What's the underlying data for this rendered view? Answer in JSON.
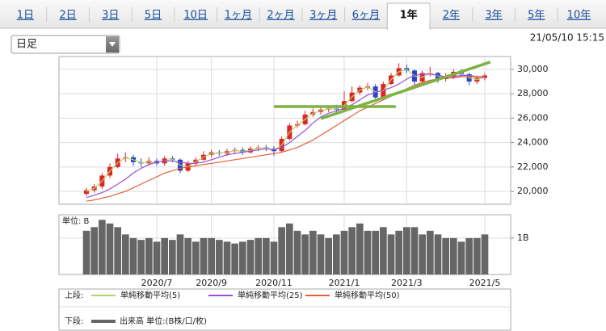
{
  "tabs": [
    {
      "label": "1日"
    },
    {
      "label": "2日"
    },
    {
      "label": "3日"
    },
    {
      "label": "5日"
    },
    {
      "label": "10日"
    },
    {
      "label": "1ヶ月"
    },
    {
      "label": "2ヶ月"
    },
    {
      "label": "3ヶ月"
    },
    {
      "label": "6ヶ月"
    },
    {
      "label": "1年",
      "active": true
    },
    {
      "label": "2年"
    },
    {
      "label": "3年"
    },
    {
      "label": "5年"
    },
    {
      "label": "10年"
    }
  ],
  "dropdown": "日足",
  "timestamp": "21/05/10 15:15",
  "chart_data": [
    {
      "type": "candlestick",
      "categories": [
        null,
        null,
        null,
        null,
        null,
        null,
        null,
        null,
        null,
        "2020/7",
        null,
        null,
        null,
        null,
        null,
        null,
        "2020/9",
        null,
        null,
        null,
        null,
        null,
        null,
        null,
        "2020/11",
        null,
        null,
        null,
        null,
        null,
        null,
        null,
        null,
        "2021/1",
        null,
        null,
        null,
        null,
        null,
        null,
        null,
        "2021/3",
        null,
        null,
        null,
        null,
        null,
        null,
        null,
        null,
        null,
        "2021/5"
      ],
      "open": [
        19800,
        20100,
        20400,
        21300,
        22000,
        22700,
        22800,
        22400,
        22300,
        22500,
        22300,
        22700,
        22600,
        21700,
        22300,
        22600,
        23000,
        23200,
        23100,
        23300,
        23400,
        23200,
        23500,
        23600,
        23500,
        23300,
        24300,
        25400,
        25500,
        26300,
        26500,
        26700,
        26800,
        26700,
        27400,
        28100,
        28500,
        28600,
        27700,
        28800,
        29500,
        30100,
        29900,
        29000,
        29700,
        29700,
        29200,
        29400,
        29800,
        29600,
        29000,
        29300
      ],
      "high": [
        20300,
        20600,
        21500,
        22300,
        23100,
        23200,
        23000,
        22700,
        22800,
        22700,
        22900,
        22900,
        22700,
        22500,
        22800,
        23300,
        23400,
        23400,
        23500,
        23600,
        23600,
        23700,
        23800,
        23800,
        23700,
        24500,
        25600,
        25800,
        26600,
        26800,
        26900,
        27000,
        27100,
        28200,
        28600,
        28700,
        28900,
        28800,
        29000,
        29700,
        30500,
        30400,
        30000,
        29900,
        30200,
        29800,
        29700,
        30000,
        30000,
        29700,
        29500,
        29700
      ],
      "low": [
        19600,
        19900,
        20200,
        21100,
        21900,
        22400,
        22100,
        22000,
        22100,
        22100,
        22100,
        22400,
        21500,
        21600,
        22100,
        22500,
        22800,
        22900,
        22900,
        23100,
        23000,
        23100,
        23300,
        23300,
        22900,
        23200,
        24200,
        25200,
        25400,
        26100,
        26300,
        26500,
        26500,
        26600,
        27300,
        27900,
        28300,
        27600,
        27600,
        28700,
        29400,
        29700,
        28700,
        28800,
        29400,
        28900,
        29000,
        29200,
        29400,
        28700,
        28800,
        29100
      ],
      "close": [
        20100,
        20400,
        21300,
        22000,
        22700,
        22800,
        22400,
        22300,
        22500,
        22300,
        22700,
        22600,
        21700,
        22300,
        22600,
        23000,
        23200,
        23100,
        23300,
        23400,
        23200,
        23500,
        23600,
        23500,
        23300,
        24300,
        25400,
        25500,
        26300,
        26500,
        26700,
        26800,
        26700,
        27400,
        28100,
        28500,
        28600,
        27700,
        28800,
        29500,
        30100,
        29900,
        29000,
        29700,
        29700,
        29200,
        29400,
        29800,
        29600,
        29000,
        29300,
        29500
      ],
      "up_color": "#e02424",
      "down_color": "#2a44c8",
      "legend_label": "上段:",
      "series": [
        {
          "name": "単純移動平均(5)",
          "color": "#b5d36b",
          "values": [
            20000,
            20250,
            20850,
            21650,
            22350,
            22750,
            22600,
            22350,
            22400,
            22400,
            22500,
            22650,
            22150,
            22000,
            22450,
            22800,
            23100,
            23150,
            23200,
            23350,
            23300,
            23350,
            23550,
            23550,
            23400,
            23800,
            24850,
            25450,
            25900,
            26400,
            26600,
            26750,
            26750,
            27050,
            27750,
            28300,
            28550,
            28150,
            28250,
            29150,
            29800,
            30000,
            29450,
            29350,
            29700,
            29450,
            29300,
            29600,
            29700,
            29300,
            29150,
            29400
          ]
        },
        {
          "name": "単純移動平均(25)",
          "color": "#9b4fd6",
          "values": [
            19500,
            19700,
            19900,
            20200,
            20600,
            21000,
            21500,
            21900,
            22200,
            22400,
            22500,
            22500,
            22400,
            22300,
            22300,
            22400,
            22600,
            22800,
            23000,
            23100,
            23200,
            23300,
            23400,
            23500,
            23400,
            23600,
            24000,
            24500,
            25000,
            25600,
            26100,
            26400,
            26600,
            26800,
            27100,
            27500,
            27900,
            28100,
            28300,
            28500,
            28800,
            29200,
            29500,
            29600,
            29600,
            29500,
            29400,
            29400,
            29500,
            29500,
            29400,
            29300
          ]
        },
        {
          "name": "単純移動平均(50)",
          "color": "#e2603c",
          "values": [
            19200,
            19300,
            19450,
            19600,
            19800,
            20000,
            20300,
            20600,
            20900,
            21200,
            21500,
            21700,
            21900,
            22000,
            22100,
            22200,
            22300,
            22400,
            22500,
            22600,
            22700,
            22800,
            22900,
            23000,
            23100,
            23200,
            23400,
            23600,
            23900,
            24200,
            24600,
            25000,
            25400,
            25800,
            26200,
            26600,
            26900,
            27200,
            27500,
            27800,
            28100,
            28400,
            28700,
            28900,
            29100,
            29200,
            29300,
            29300,
            29400,
            29400,
            29400,
            29400
          ]
        }
      ],
      "trendlines": [
        {
          "x": [
            24,
            39.6
          ],
          "y": [
            26950,
            26950
          ],
          "color": "#7cb342"
        },
        {
          "x": [
            30,
            51.7
          ],
          "y": [
            25960,
            30600
          ],
          "color": "#7cb342"
        }
      ],
      "ylim": [
        18950,
        31050
      ],
      "yticks": [
        {
          "value": 20000,
          "label": "20,000"
        },
        {
          "value": 22000,
          "label": "22,000"
        },
        {
          "value": 24000,
          "label": "24,000"
        },
        {
          "value": 26000,
          "label": "26,000"
        },
        {
          "value": 28000,
          "label": "28,000"
        },
        {
          "value": 30000,
          "label": "30,000"
        }
      ],
      "grid": true
    },
    {
      "type": "bar",
      "unit_label": "単位: B",
      "legend_label": "下段:",
      "series": [
        {
          "name": "出来高 単位:(B株/口/枚)",
          "color": "#666666",
          "values": [
            1.2,
            1.3,
            1.5,
            1.4,
            1.3,
            1.1,
            1.0,
            0.95,
            1.0,
            0.9,
            1.0,
            0.95,
            1.1,
            1.0,
            0.9,
            1.0,
            1.0,
            0.95,
            0.9,
            0.85,
            0.9,
            0.95,
            1.0,
            1.0,
            0.9,
            1.3,
            1.4,
            1.2,
            1.1,
            1.2,
            1.1,
            1.0,
            1.1,
            1.2,
            1.3,
            1.4,
            1.2,
            1.2,
            1.3,
            1.1,
            1.2,
            1.3,
            1.3,
            1.1,
            1.2,
            1.1,
            1.0,
            1.0,
            0.9,
            1.0,
            1.0,
            1.1
          ]
        }
      ],
      "ylim": [
        0,
        1.64
      ],
      "yticks": [
        {
          "value": 1,
          "label": "1B"
        }
      ],
      "grid": true
    }
  ]
}
